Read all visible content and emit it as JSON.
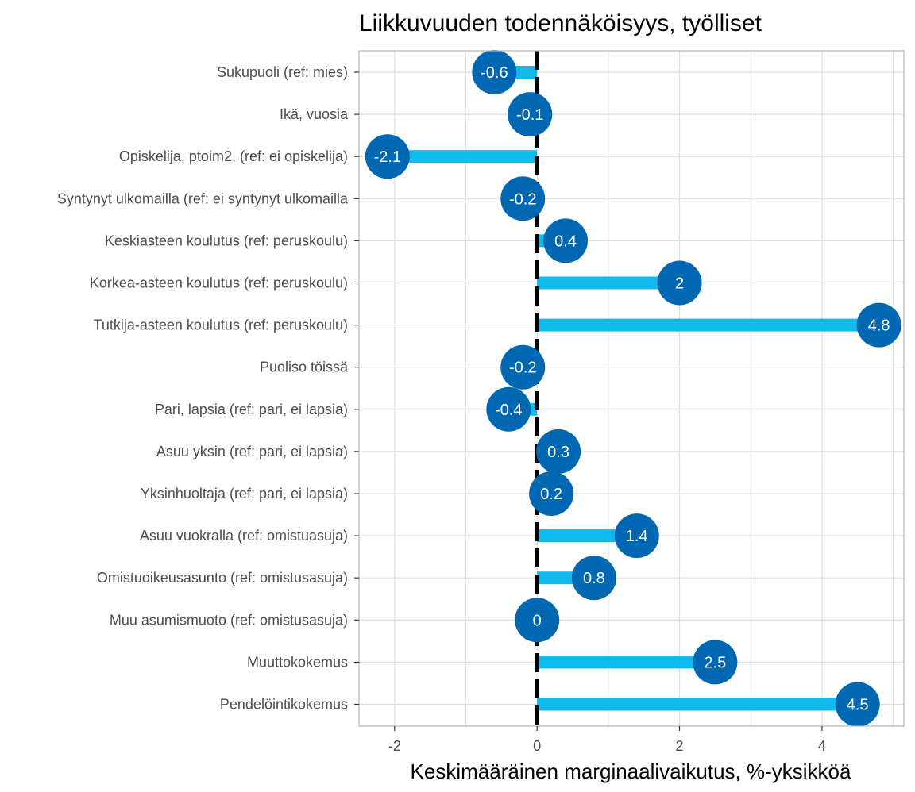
{
  "chart_data": {
    "type": "bar",
    "orientation": "horizontal",
    "style": "lollipop",
    "title": "Liikkuvuuden todennäköisyys, työlliset",
    "xlabel": "Keskimääräinen marginaalivaikutus, %-yksikköä",
    "ylabel": "",
    "xlim": [
      -2.5,
      5.15
    ],
    "xticks": [
      -2,
      0,
      2,
      4
    ],
    "xtick_labels": [
      "-2",
      "0",
      "2",
      "4"
    ],
    "grid": true,
    "reference_line": 0,
    "categories": [
      "Sukupuoli (ref: mies)",
      "Ikä, vuosia",
      "Opiskelija, ptoim2, (ref: ei opiskelija)",
      "Syntynyt ulkomailla (ref: ei syntynyt ulkomailla",
      "Keskiasteen koulutus (ref: peruskoulu)",
      "Korkea-asteen koulutus (ref: peruskoulu)",
      "Tutkija-asteen koulutus (ref: peruskoulu)",
      "Puoliso töissä",
      "Pari, lapsia (ref: pari, ei lapsia)",
      "Asuu yksin (ref: pari, ei lapsia)",
      "Yksinhuoltaja (ref: pari, ei lapsia)",
      "Asuu vuokralla (ref: omistuasuja)",
      "Omistuoikeusasunto (ref: omistusasuja)",
      "Muu asumismuoto (ref: omistusasuja)",
      "Muuttokokemus",
      "Pendelöintikokemus"
    ],
    "values": [
      -0.6,
      -0.1,
      -2.1,
      -0.2,
      0.4,
      2,
      4.8,
      -0.2,
      -0.4,
      0.3,
      0.2,
      1.4,
      0.8,
      0,
      2.5,
      4.5
    ],
    "value_labels": [
      "-0.6",
      "-0.1",
      "-2.1",
      "-0.2",
      "0.4",
      "2",
      "4.8",
      "-0.2",
      "-0.4",
      "0.3",
      "0.2",
      "1.4",
      "0.8",
      "0",
      "2.5",
      "4.5"
    ],
    "colors": {
      "bar": "#0fbbec",
      "point": "#0068b3",
      "zero_line": "#000000",
      "grid": "#dedede",
      "panel_border": "#b3b3b3"
    }
  }
}
